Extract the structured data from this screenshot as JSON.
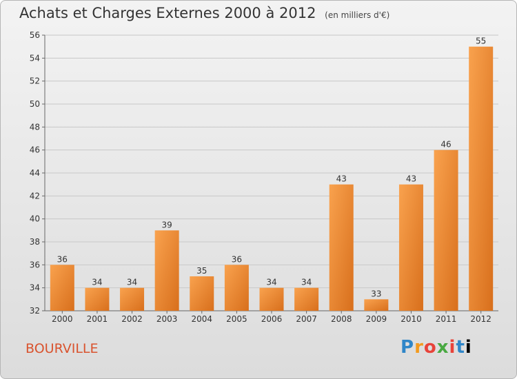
{
  "header": {
    "title": "Achats et Charges Externes 2000 à 2012",
    "subtitle": "(en milliers d'€)"
  },
  "footer": {
    "town": "BOURVILLE",
    "logo": [
      "P",
      "r",
      "o",
      "x",
      "i",
      "t",
      "i"
    ]
  },
  "colors": {
    "bar_light": "#f9a24e",
    "bar_dark": "#d86f1c",
    "grid": "#c8c8c8"
  },
  "chart_data": {
    "type": "bar",
    "title": "Achats et Charges Externes 2000 à 2012",
    "subtitle": "(en milliers d'€)",
    "xlabel": "",
    "ylabel": "",
    "categories": [
      "2000",
      "2001",
      "2002",
      "2003",
      "2004",
      "2005",
      "2006",
      "2007",
      "2008",
      "2009",
      "2010",
      "2011",
      "2012"
    ],
    "values": [
      36,
      34,
      34,
      39,
      35,
      36,
      34,
      34,
      43,
      33,
      43,
      46,
      55
    ],
    "ylim": [
      32,
      56
    ],
    "yticks": [
      32,
      34,
      36,
      38,
      40,
      42,
      44,
      46,
      48,
      50,
      52,
      54,
      56
    ],
    "grid": true,
    "data_labels": true
  }
}
